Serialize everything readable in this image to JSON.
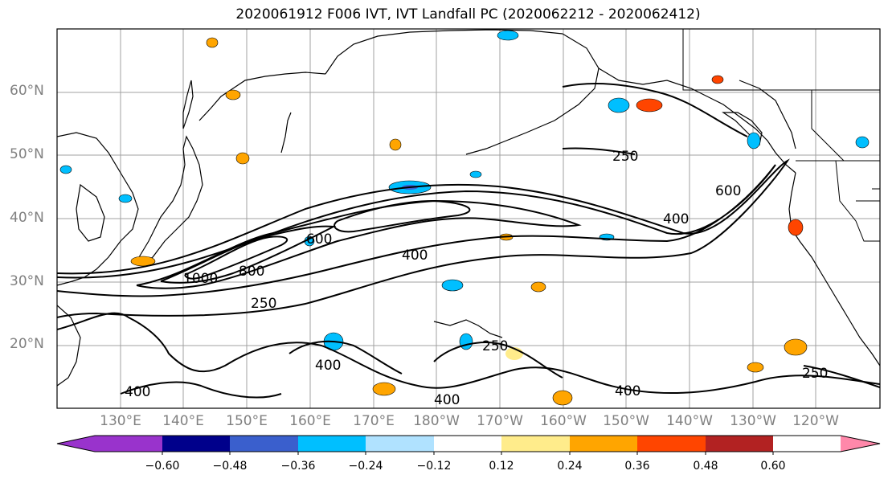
{
  "title": "2020061912 F006 IVT, IVT Landfall PC (2020062212 - 2020062412)",
  "lat_labels": [
    "60°N",
    "50°N",
    "40°N",
    "30°N",
    "20°N"
  ],
  "lon_labels": [
    "130°E",
    "140°E",
    "150°E",
    "160°E",
    "170°E",
    "180°W",
    "170°W",
    "160°W",
    "150°W",
    "140°W",
    "130°W",
    "120°W"
  ],
  "contour_labels": [
    "250",
    "400",
    "600",
    "800",
    "1000"
  ],
  "colorbar": {
    "ticks": [
      "−0.60",
      "−0.48",
      "−0.36",
      "−0.24",
      "−0.12",
      "0.12",
      "0.24",
      "0.36",
      "0.48",
      "0.60"
    ],
    "colors": [
      "#9933cc",
      "#00008b",
      "#3a5fcd",
      "#00bfff",
      "#b0e2ff",
      "#ffffff",
      "#ffec8b",
      "#ffa500",
      "#ff4500",
      "#b22222",
      "#ff88aa"
    ]
  }
}
